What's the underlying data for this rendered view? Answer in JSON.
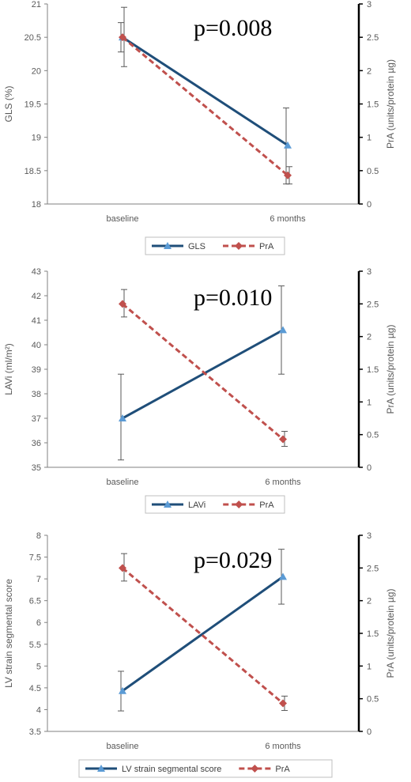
{
  "colors": {
    "primary_series": "#1f4e79",
    "primary_marker": "#5b9bd5",
    "secondary_series": "#c0504d",
    "axis": "#000000",
    "tick_text": "#595959",
    "errorbar": "#595959"
  },
  "chart_data": [
    {
      "type": "line",
      "annotation": "p=0.008",
      "categories": [
        "baseline",
        "6 months"
      ],
      "ylabel": "GLS (%)",
      "y2label": "PrA (units/protein µg)",
      "ylim": [
        18,
        21
      ],
      "yticks": [
        "18",
        "18.5",
        "19",
        "19.5",
        "20",
        "20.5",
        "21"
      ],
      "y2lim": [
        0,
        3
      ],
      "y2ticks": [
        "0",
        "0.5",
        "1",
        "1.5",
        "2",
        "2.5",
        "3"
      ],
      "grid": false,
      "legend_position": "bottom",
      "series": [
        {
          "name": "GLS",
          "axis": "left",
          "style": "solid",
          "marker": "triangle",
          "values": [
            20.5,
            18.88
          ],
          "error_low": [
            20.28,
            18.3
          ],
          "error_high": [
            20.72,
            19.44
          ]
        },
        {
          "name": "PrA",
          "axis": "right",
          "style": "dashed",
          "marker": "diamond",
          "values": [
            2.5,
            0.43
          ],
          "error_low": [
            2.06,
            0.3
          ],
          "error_high": [
            2.95,
            0.56
          ]
        }
      ]
    },
    {
      "type": "line",
      "annotation": "p=0.010",
      "categories": [
        "baseline",
        "6 months"
      ],
      "ylabel": "LAVi (ml/m²)",
      "y2label": "PrA (units/protein µg)",
      "ylim": [
        35,
        43
      ],
      "yticks": [
        "35",
        "36",
        "37",
        "38",
        "39",
        "40",
        "41",
        "42",
        "43"
      ],
      "y2lim": [
        0,
        3
      ],
      "y2ticks": [
        "0",
        "0.5",
        "1",
        "1.5",
        "2",
        "2.5",
        "3"
      ],
      "grid": false,
      "legend_position": "bottom",
      "series": [
        {
          "name": "LAVi",
          "axis": "left",
          "style": "solid",
          "marker": "triangle",
          "values": [
            37.0,
            40.6
          ],
          "error_low": [
            35.3,
            38.8
          ],
          "error_high": [
            38.8,
            42.4
          ]
        },
        {
          "name": "PrA",
          "axis": "right",
          "style": "dashed",
          "marker": "diamond",
          "values": [
            2.5,
            0.43
          ],
          "error_low": [
            2.3,
            0.32
          ],
          "error_high": [
            2.72,
            0.55
          ]
        }
      ]
    },
    {
      "type": "line",
      "annotation": "p=0.029",
      "categories": [
        "baseline",
        "6 months"
      ],
      "ylabel": "LV strain segmental score",
      "y2label": "PrA (units/protein µg)",
      "ylim": [
        3.5,
        8
      ],
      "yticks": [
        "3.5",
        "4",
        "4.5",
        "5",
        "5.5",
        "6",
        "6.5",
        "7",
        "7.5",
        "8"
      ],
      "y2lim": [
        0,
        3
      ],
      "y2ticks": [
        "0",
        "0.5",
        "1",
        "1.5",
        "2",
        "2.5",
        "3"
      ],
      "grid": false,
      "legend_position": "bottom",
      "series": [
        {
          "name": "LV strain segmental score",
          "axis": "left",
          "style": "solid",
          "marker": "triangle",
          "values": [
            4.43,
            7.05
          ],
          "error_low": [
            3.97,
            6.42
          ],
          "error_high": [
            4.88,
            7.68
          ]
        },
        {
          "name": "PrA",
          "axis": "right",
          "style": "dashed",
          "marker": "diamond",
          "values": [
            2.5,
            0.43
          ],
          "error_low": [
            2.3,
            0.32
          ],
          "error_high": [
            2.72,
            0.54
          ]
        }
      ]
    }
  ]
}
